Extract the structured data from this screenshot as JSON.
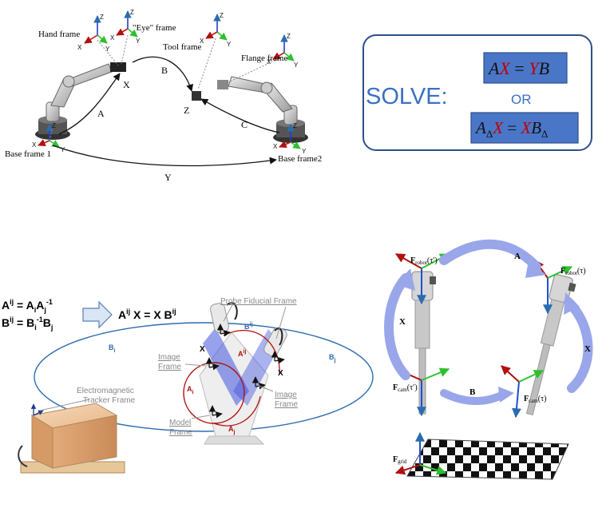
{
  "top_left": {
    "hand_frame": "Hand frame",
    "eye_frame": "\"Eye\" frame",
    "tool_frame": "Tool frame",
    "flange_frame": "Flange frame",
    "base_frame1": "Base frame 1",
    "base_frame2": "Base frame2",
    "arrow_A": "A",
    "arrow_B": "B",
    "arrow_C": "C",
    "arrow_Y": "Y",
    "point_X": "X",
    "point_Z": "Z",
    "axis_z": "Z",
    "axis_x": "X",
    "axis_y": "Y"
  },
  "solve_box": {
    "title": "SOLVE:",
    "eq1_A": "A",
    "eq1_X": "X",
    "eq1_eq": " = ",
    "eq1_Y": "Y",
    "eq1_B": "B",
    "or": "OR",
    "eq2_A": "A",
    "eq2_sub1": "Δ",
    "eq2_X1": "X",
    "eq2_eq": " = ",
    "eq2_X2": "X",
    "eq2_B": "B",
    "eq2_sub2": "Δ",
    "colors": {
      "blue_text": "#3b6fc4",
      "red": "#c00000",
      "box_fill": "#4a76c8",
      "border": "#2e4f8a"
    }
  },
  "bottom_left": {
    "eq_aij_A": "A",
    "eq_aij_sup": "ij",
    "eq_aij_rhs": " = A",
    "eq_aij_sub_i": "i",
    "eq_aij_A2": "A",
    "eq_aij_sub_j": "j",
    "eq_aij_sup2": "-1",
    "eq_bij_B": "B",
    "eq_bij_sup": "ij",
    "eq_bij_rhs": " = B",
    "eq_bij_sub_i": "i",
    "eq_bij_sup2": "-1",
    "eq_bij_B2": "B",
    "eq_bij_sub_j": "j",
    "solve_A": "A",
    "solve_sup1": "ij",
    "solve_mid": " X = X B",
    "solve_sup2": "ij",
    "probe_fiducial": "Probe Fiducial Frame",
    "image_frame_left_1": "Image",
    "image_frame_left_2": "Frame",
    "image_frame_right_1": "Image",
    "image_frame_right_2": "Frame",
    "model_frame_1": "Model",
    "model_frame_2": "Frame",
    "tracker_1": "Electromagnetic",
    "tracker_2": "Tracker Frame",
    "label_Bij": "B",
    "label_Bij_sup": "ij",
    "label_Aij": "A",
    "label_Aij_sup": "ij",
    "label_Bi": "B",
    "label_Bi_sub": "i",
    "label_Bj": "B",
    "label_Bj_sub": "j",
    "label_Ai": "A",
    "label_Ai_sub": "i",
    "label_Aj": "A",
    "label_Aj_sub": "j",
    "label_X": "X"
  },
  "bottom_right": {
    "F": "F",
    "robot_tau_prime": "robot",
    "robot_arg1": "(τ′)",
    "robot_arg2": "(τ)",
    "cam_sub": "cam",
    "cam_arg1": "(τ′)",
    "cam_arg2": "(τ)",
    "grid_sub": "grid",
    "arrow_A": "A",
    "arrow_B": "B",
    "arrow_X_left": "X",
    "arrow_X_right": "X"
  }
}
